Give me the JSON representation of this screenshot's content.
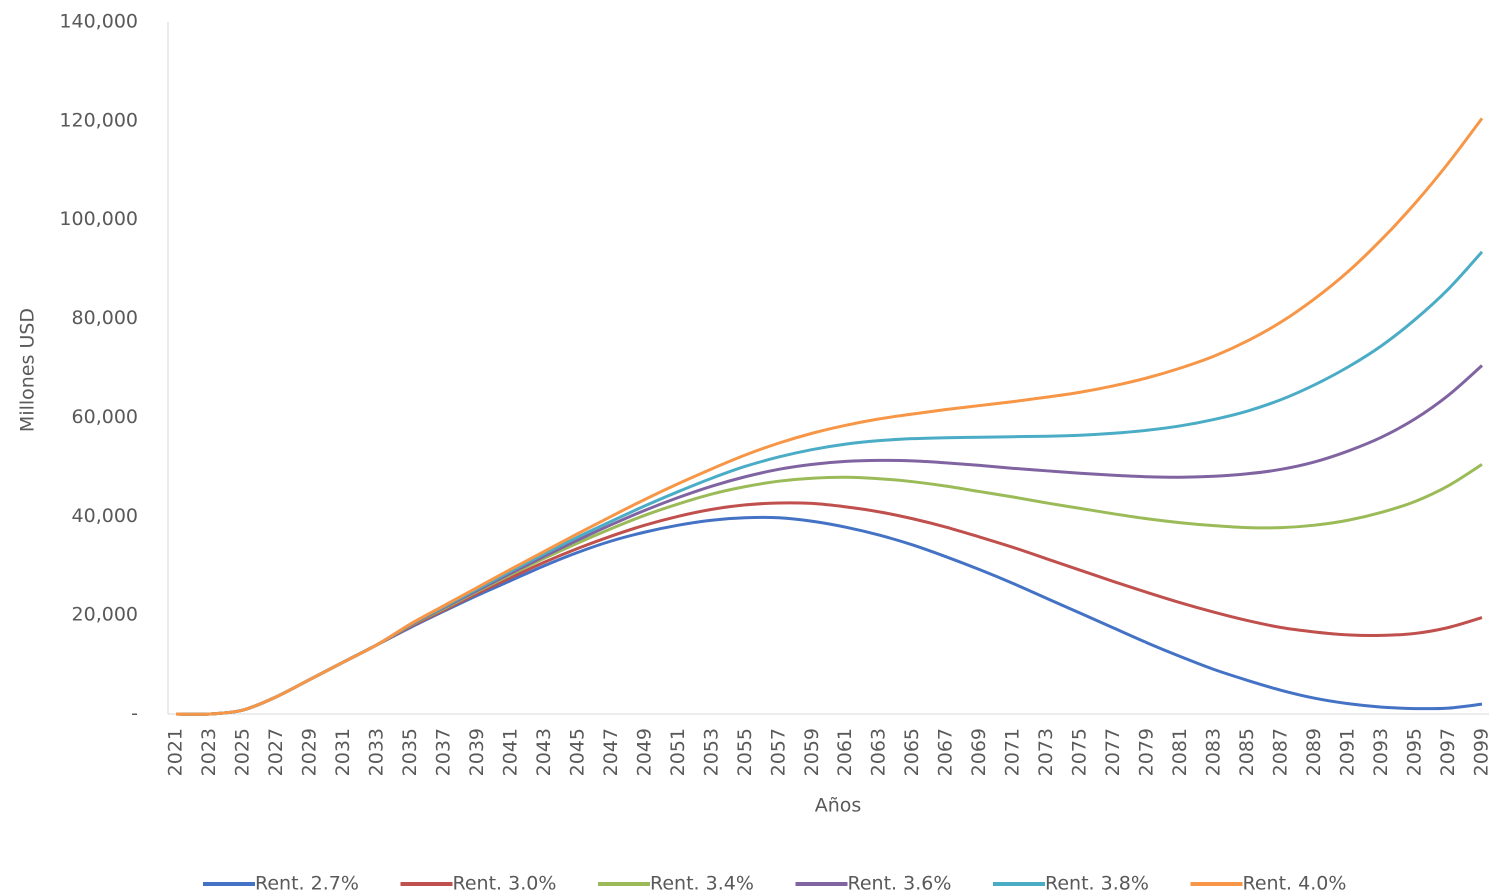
{
  "chart_data": {
    "type": "line",
    "x_label": "Años",
    "y_label": "Millones USD",
    "categories": [
      "2021",
      "2023",
      "2025",
      "2027",
      "2029",
      "2031",
      "2033",
      "2035",
      "2037",
      "2039",
      "2041",
      "2043",
      "2045",
      "2047",
      "2049",
      "2051",
      "2053",
      "2055",
      "2057",
      "2059",
      "2061",
      "2063",
      "2065",
      "2067",
      "2069",
      "2071",
      "2073",
      "2075",
      "2077",
      "2079",
      "2081",
      "2083",
      "2085",
      "2087",
      "2089",
      "2091",
      "2093",
      "2095",
      "2097",
      "2099"
    ],
    "ylim": [
      0,
      140000
    ],
    "yticks": [
      {
        "value": 0,
        "label": "-"
      },
      {
        "value": 20000,
        "label": "20,000"
      },
      {
        "value": 40000,
        "label": "40,000"
      },
      {
        "value": 60000,
        "label": "60,000"
      },
      {
        "value": 80000,
        "label": "80,000"
      },
      {
        "value": 100000,
        "label": "100,000"
      },
      {
        "value": 120000,
        "label": "120,000"
      },
      {
        "value": 140000,
        "label": "140,000"
      }
    ],
    "grid": false,
    "legend": "bottom",
    "series": [
      {
        "name": "Rent. 2.7%",
        "color": "#4472c4",
        "values": [
          0,
          0,
          800,
          3500,
          7000,
          10500,
          14000,
          17500,
          20800,
          24000,
          27000,
          30000,
          32700,
          35000,
          36800,
          38200,
          39200,
          39700,
          39700,
          39000,
          37800,
          36200,
          34200,
          31800,
          29200,
          26400,
          23400,
          20400,
          17400,
          14400,
          11600,
          9000,
          6800,
          4800,
          3200,
          2100,
          1400,
          1100,
          1200,
          2000
        ]
      },
      {
        "name": "Rent. 3.0%",
        "color": "#c0504d",
        "values": [
          0,
          0,
          800,
          3500,
          7000,
          10500,
          14000,
          17700,
          21000,
          24400,
          27600,
          30700,
          33500,
          36000,
          38200,
          40000,
          41400,
          42300,
          42700,
          42600,
          41900,
          40900,
          39500,
          37800,
          35800,
          33700,
          31400,
          29100,
          26800,
          24600,
          22500,
          20600,
          18900,
          17500,
          16600,
          16000,
          15900,
          16300,
          17500,
          19500
        ]
      },
      {
        "name": "Rent. 3.4%",
        "color": "#9bbb59",
        "values": [
          0,
          0,
          800,
          3500,
          7000,
          10500,
          14000,
          17900,
          21300,
          24800,
          28200,
          31500,
          34600,
          37500,
          40200,
          42500,
          44500,
          46000,
          47100,
          47700,
          47900,
          47600,
          47000,
          46100,
          45000,
          43900,
          42700,
          41600,
          40500,
          39500,
          38700,
          38100,
          37700,
          37700,
          38200,
          39200,
          40800,
          43000,
          46200,
          50500
        ]
      },
      {
        "name": "Rent. 3.6%",
        "color": "#8064a2",
        "values": [
          0,
          0,
          800,
          3500,
          7000,
          10500,
          14000,
          18000,
          21500,
          25000,
          28500,
          31900,
          35200,
          38300,
          41200,
          43800,
          46100,
          48000,
          49500,
          50500,
          51100,
          51300,
          51200,
          50800,
          50300,
          49700,
          49200,
          48700,
          48300,
          48000,
          47900,
          48100,
          48600,
          49500,
          51000,
          53200,
          56000,
          59700,
          64500,
          70500
        ]
      },
      {
        "name": "Rent. 3.8%",
        "color": "#4bacc6",
        "values": [
          0,
          0,
          800,
          3500,
          7000,
          10500,
          14000,
          18100,
          21700,
          25300,
          28900,
          32400,
          35800,
          39000,
          42100,
          45000,
          47700,
          50100,
          52000,
          53500,
          54600,
          55300,
          55700,
          55900,
          56000,
          56100,
          56200,
          56400,
          56800,
          57400,
          58300,
          59600,
          61300,
          63600,
          66600,
          70200,
          74500,
          79800,
          86000,
          93500
        ]
      },
      {
        "name": "Rent. 4.0%",
        "color": "#f79646",
        "values": [
          0,
          0,
          800,
          3500,
          7000,
          10500,
          14000,
          18200,
          21900,
          25600,
          29300,
          32900,
          36500,
          40000,
          43400,
          46600,
          49600,
          52400,
          54800,
          56800,
          58400,
          59700,
          60700,
          61600,
          62400,
          63200,
          64100,
          65100,
          66400,
          68000,
          70000,
          72400,
          75500,
          79300,
          84000,
          89500,
          96000,
          103300,
          111500,
          120500
        ]
      }
    ]
  }
}
